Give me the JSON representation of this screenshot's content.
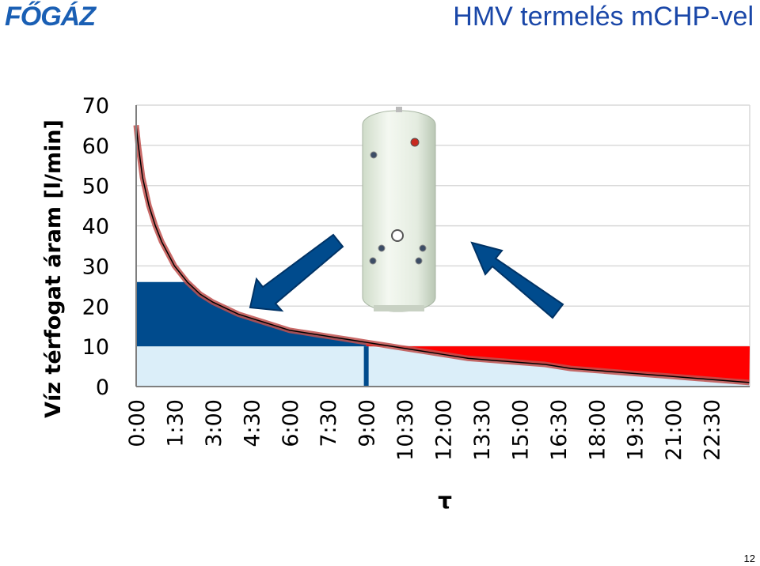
{
  "header": {
    "logo": "FŐGÁZ",
    "title": "HMV termelés mCHP-vel"
  },
  "footer": {
    "page_number": "12"
  },
  "colors": {
    "demand_curve": "#c0504d",
    "storage_fill": "#004b8d",
    "deficit_fill": "#ff0000",
    "base_fill": "#dbeef9",
    "arrow": "#004b8d",
    "grid": "#d9d9d9"
  },
  "icons": [
    "hot-water-storage-tank-image",
    "arrow-left-down",
    "arrow-right-up"
  ],
  "chart_data": {
    "type": "area",
    "ylabel": "Víz térfogat áram [l/min]",
    "xlabel": "τ",
    "ylim": [
      0,
      70
    ],
    "yticks": [
      0,
      10,
      20,
      30,
      40,
      50,
      60,
      70
    ],
    "xlim_hours": [
      0,
      24
    ],
    "xticks": [
      "0:00",
      "1:30",
      "3:00",
      "4:30",
      "6:00",
      "7:30",
      "9:00",
      "10:30",
      "12:00",
      "13:30",
      "15:00",
      "16:30",
      "18:00",
      "19:30",
      "21:00",
      "22:30"
    ],
    "grid": true,
    "series": [
      {
        "x": [
          "0:00",
          "0:05",
          "0:15",
          "0:30",
          "0:45",
          "1:00",
          "1:30",
          "2:00",
          "2:30",
          "3:00",
          "3:30",
          "4:00",
          "4:30",
          "5:00",
          "5:30",
          "6:00",
          "6:30",
          "7:00",
          "7:30",
          "8:00",
          "8:30",
          "9:00",
          "9:30",
          "10:00",
          "11:00",
          "12:00",
          "13:00",
          "14:00",
          "15:00",
          "16:00",
          "17:00",
          "18:00",
          "19:00",
          "20:00",
          "21:00",
          "22:00",
          "23:00",
          "23:59"
        ],
        "values": [
          65,
          60,
          52,
          45,
          40,
          36,
          30,
          26,
          23,
          21,
          19.5,
          18,
          17,
          16,
          15,
          14,
          13.5,
          13,
          12.5,
          12,
          11.5,
          11,
          10.5,
          10,
          9,
          8,
          7,
          6.5,
          6,
          5.5,
          4.5,
          4,
          3.5,
          3,
          2.5,
          2,
          1.5,
          1
        ]
      }
    ],
    "levels": [
      {
        "value": 26
      },
      {
        "value": 10
      }
    ],
    "marker_time": "9:00"
  }
}
